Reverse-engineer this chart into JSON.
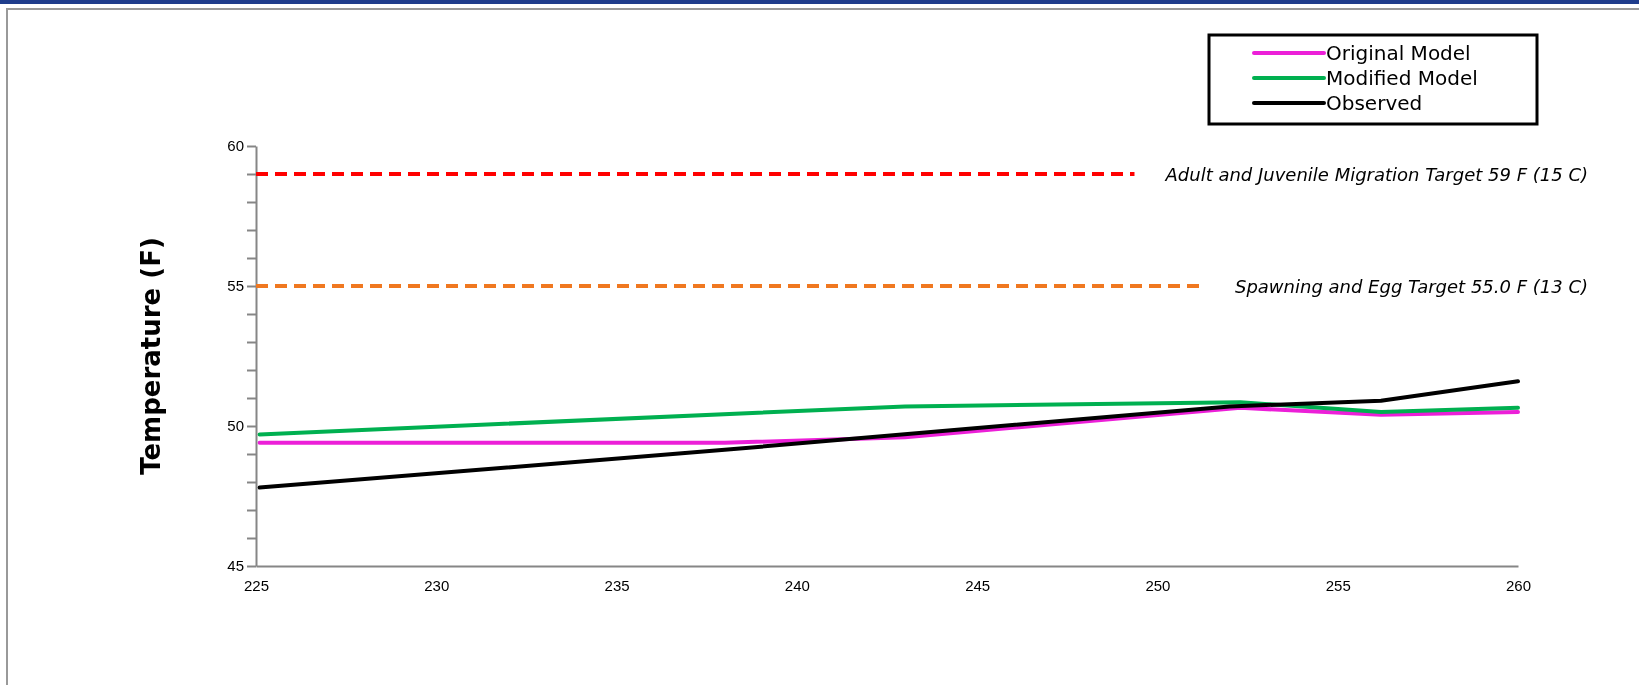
{
  "chart_data": {
    "type": "line",
    "ylabel": "Temperature (F)",
    "xlim": [
      225,
      260
    ],
    "xticks": [
      225,
      230,
      235,
      240,
      245,
      250,
      255,
      260
    ],
    "ylim": [
      45,
      60
    ],
    "yticks": [
      45,
      {
        "value": 46,
        "label": null
      },
      {
        "value": 47,
        "label": null
      },
      {
        "value": 48,
        "label": null
      },
      {
        "value": 49,
        "label": null
      },
      50,
      {
        "value": 51,
        "label": null
      },
      {
        "value": 52,
        "label": null
      },
      {
        "value": 53,
        "label": null
      },
      {
        "value": 54,
        "label": null
      },
      55,
      {
        "value": 56,
        "label": null
      },
      {
        "value": 57,
        "label": null
      },
      {
        "value": 58,
        "label": null
      },
      {
        "value": 59,
        "label": null
      },
      60
    ],
    "series": [
      {
        "name": "Original Model",
        "color": "#ec1fd8",
        "x": [
          225.1,
          238,
          243,
          252.3,
          256.2,
          260
        ],
        "values": [
          49.4,
          49.4,
          49.6,
          50.65,
          50.4,
          50.5
        ]
      },
      {
        "name": "Modified Model",
        "color": "#00b050",
        "x": [
          225.1,
          243,
          252.3,
          256.2,
          260
        ],
        "values": [
          49.7,
          50.7,
          50.85,
          50.5,
          50.65
        ]
      },
      {
        "name": "Observed",
        "color": "#000000",
        "x": [
          225.1,
          238,
          252,
          256.2,
          260
        ],
        "values": [
          47.8,
          49.15,
          50.7,
          50.9,
          51.6
        ]
      }
    ],
    "ref_lines": [
      {
        "axis": "y",
        "value": 59,
        "label": "Adult and Juvenile Migration Target 59 F  (15 C)",
        "color": "#ff0000",
        "line_style": "dashed"
      },
      {
        "axis": "y",
        "value": 55,
        "label": "Spawning and Egg Target 55.0 F  (13 C)",
        "color": "#f07820",
        "line_style": "dashed"
      }
    ],
    "legend": "top right",
    "grid": false
  }
}
